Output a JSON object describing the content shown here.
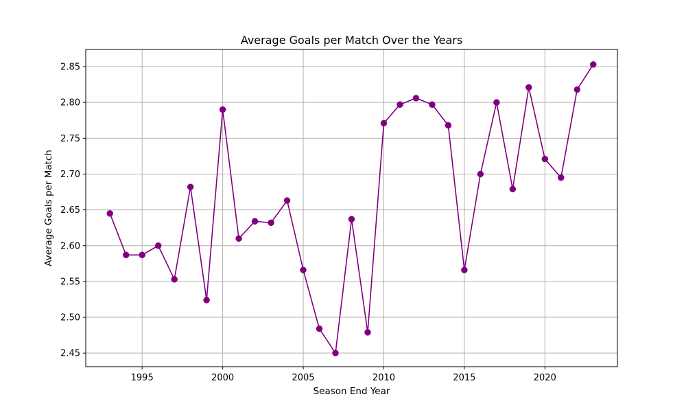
{
  "chart_data": {
    "type": "line",
    "title": "Average Goals per Match Over the Years",
    "xlabel": "Season End Year",
    "ylabel": "Average Goals per Match",
    "xlim": [
      1991.5,
      2024.5
    ],
    "ylim": [
      2.431,
      2.874
    ],
    "xticks": [
      1995,
      2000,
      2005,
      2010,
      2015,
      2020
    ],
    "yticks": [
      2.45,
      2.5,
      2.55,
      2.6,
      2.65,
      2.7,
      2.75,
      2.8,
      2.85
    ],
    "grid": true,
    "legend": "none",
    "colors": {
      "line": "#800080",
      "marker": "#800080",
      "grid": "#b0b0b0"
    },
    "series": [
      {
        "x": [
          1993,
          1994,
          1995,
          1996,
          1997,
          1998,
          1999,
          2000,
          2001,
          2002,
          2003,
          2004,
          2005,
          2006,
          2007,
          2008,
          2009,
          2010,
          2011,
          2012,
          2013,
          2014,
          2015,
          2016,
          2017,
          2018,
          2019,
          2020,
          2021,
          2022,
          2023
        ],
        "y": [
          2.645,
          2.587,
          2.587,
          2.6,
          2.553,
          2.682,
          2.524,
          2.79,
          2.61,
          2.634,
          2.632,
          2.663,
          2.566,
          2.484,
          2.45,
          2.637,
          2.479,
          2.771,
          2.797,
          2.806,
          2.797,
          2.768,
          2.566,
          2.7,
          2.8,
          2.679,
          2.821,
          2.721,
          2.695,
          2.818,
          2.853
        ]
      }
    ]
  }
}
